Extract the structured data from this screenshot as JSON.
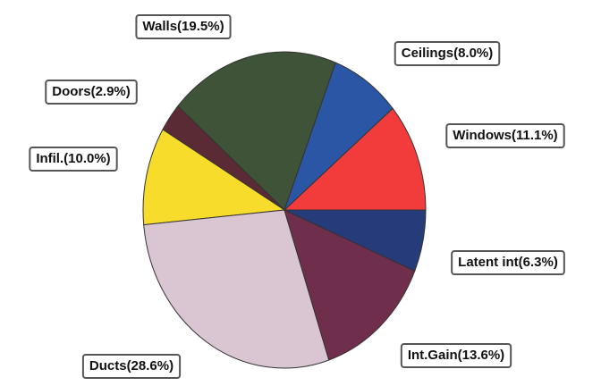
{
  "chart_data": {
    "type": "pie",
    "values": [
      11.1,
      8.0,
      19.5,
      2.9,
      10.0,
      28.6,
      13.6,
      6.3
    ],
    "value_labels": [
      "Windows(11.1%)",
      "Ceilings(8.0%)",
      "Walls(19.5%)",
      "Doors(2.9%)",
      "Infil.(10.0%)",
      "Ducts(28.6%)",
      "Int.Gain(13.6%)",
      "Latent int(6.3%)"
    ],
    "colors": [
      "#f23c3c",
      "#2b56a6",
      "#3e5338",
      "#5b2b35",
      "#f8dc2c",
      "#dac6d2",
      "#6f2e4b",
      "#263b7a"
    ]
  }
}
